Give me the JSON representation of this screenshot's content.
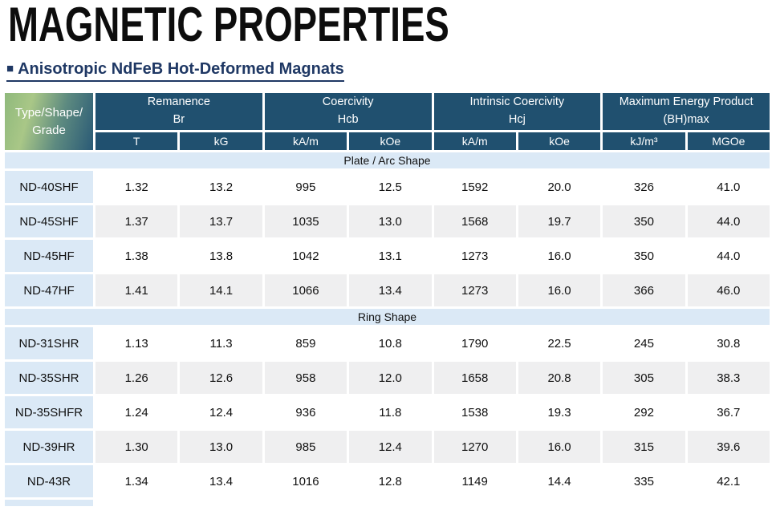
{
  "page": {
    "title": "MAGNETIC PROPERTIES",
    "bullet": "■",
    "subtitle": "Anisotropic NdFeB Hot-Deformed Magnats"
  },
  "table": {
    "corner": {
      "line1": "Type/Shape/",
      "line2": "Grade"
    },
    "groups": [
      {
        "title": "Remanence",
        "sub": "Br",
        "units": [
          "T",
          "kG"
        ]
      },
      {
        "title": "Coercivity",
        "sub": "Hcb",
        "units": [
          "kA/m",
          "kOe"
        ]
      },
      {
        "title": "Intrinsic Coercivity",
        "sub": "Hcj",
        "units": [
          "kA/m",
          "kOe"
        ]
      },
      {
        "title": "Maximum Energy Product",
        "sub": "(BH)max",
        "units": [
          "kJ/m³",
          "MGOe"
        ]
      }
    ],
    "sections": [
      {
        "label": "Plate / Arc Shape",
        "rows": [
          {
            "grade": "ND-40SHF",
            "values": [
              "1.32",
              "13.2",
              "995",
              "12.5",
              "1592",
              "20.0",
              "326",
              "41.0"
            ]
          },
          {
            "grade": "ND-45SHF",
            "values": [
              "1.37",
              "13.7",
              "1035",
              "13.0",
              "1568",
              "19.7",
              "350",
              "44.0"
            ]
          },
          {
            "grade": "ND-45HF",
            "values": [
              "1.38",
              "13.8",
              "1042",
              "13.1",
              "1273",
              "16.0",
              "350",
              "44.0"
            ]
          },
          {
            "grade": "ND-47HF",
            "values": [
              "1.41",
              "14.1",
              "1066",
              "13.4",
              "1273",
              "16.0",
              "366",
              "46.0"
            ]
          }
        ]
      },
      {
        "label": "Ring Shape",
        "rows": [
          {
            "grade": "ND-31SHR",
            "values": [
              "1.13",
              "11.3",
              "859",
              "10.8",
              "1790",
              "22.5",
              "245",
              "30.8"
            ]
          },
          {
            "grade": "ND-35SHR",
            "values": [
              "1.26",
              "12.6",
              "958",
              "12.0",
              "1658",
              "20.8",
              "305",
              "38.3"
            ]
          },
          {
            "grade": "ND-35SHFR",
            "values": [
              "1.24",
              "12.4",
              "936",
              "11.8",
              "1538",
              "19.3",
              "292",
              "36.7"
            ]
          },
          {
            "grade": "ND-39HR",
            "values": [
              "1.30",
              "13.0",
              "985",
              "12.4",
              "1270",
              "16.0",
              "315",
              "39.6"
            ]
          },
          {
            "grade": "ND-43R",
            "values": [
              "1.34",
              "13.4",
              "1016",
              "12.8",
              "1149",
              "14.4",
              "335",
              "42.1"
            ]
          }
        ]
      }
    ],
    "colors": {
      "header_bg": "#20506F",
      "corner_gradient_start": "#8FB97C",
      "corner_gradient_end": "#2A5A76",
      "heading_navy": "#1F3864",
      "band_light_blue": "#DBE9F6",
      "alt_row_gray": "#EFEFF0"
    }
  }
}
